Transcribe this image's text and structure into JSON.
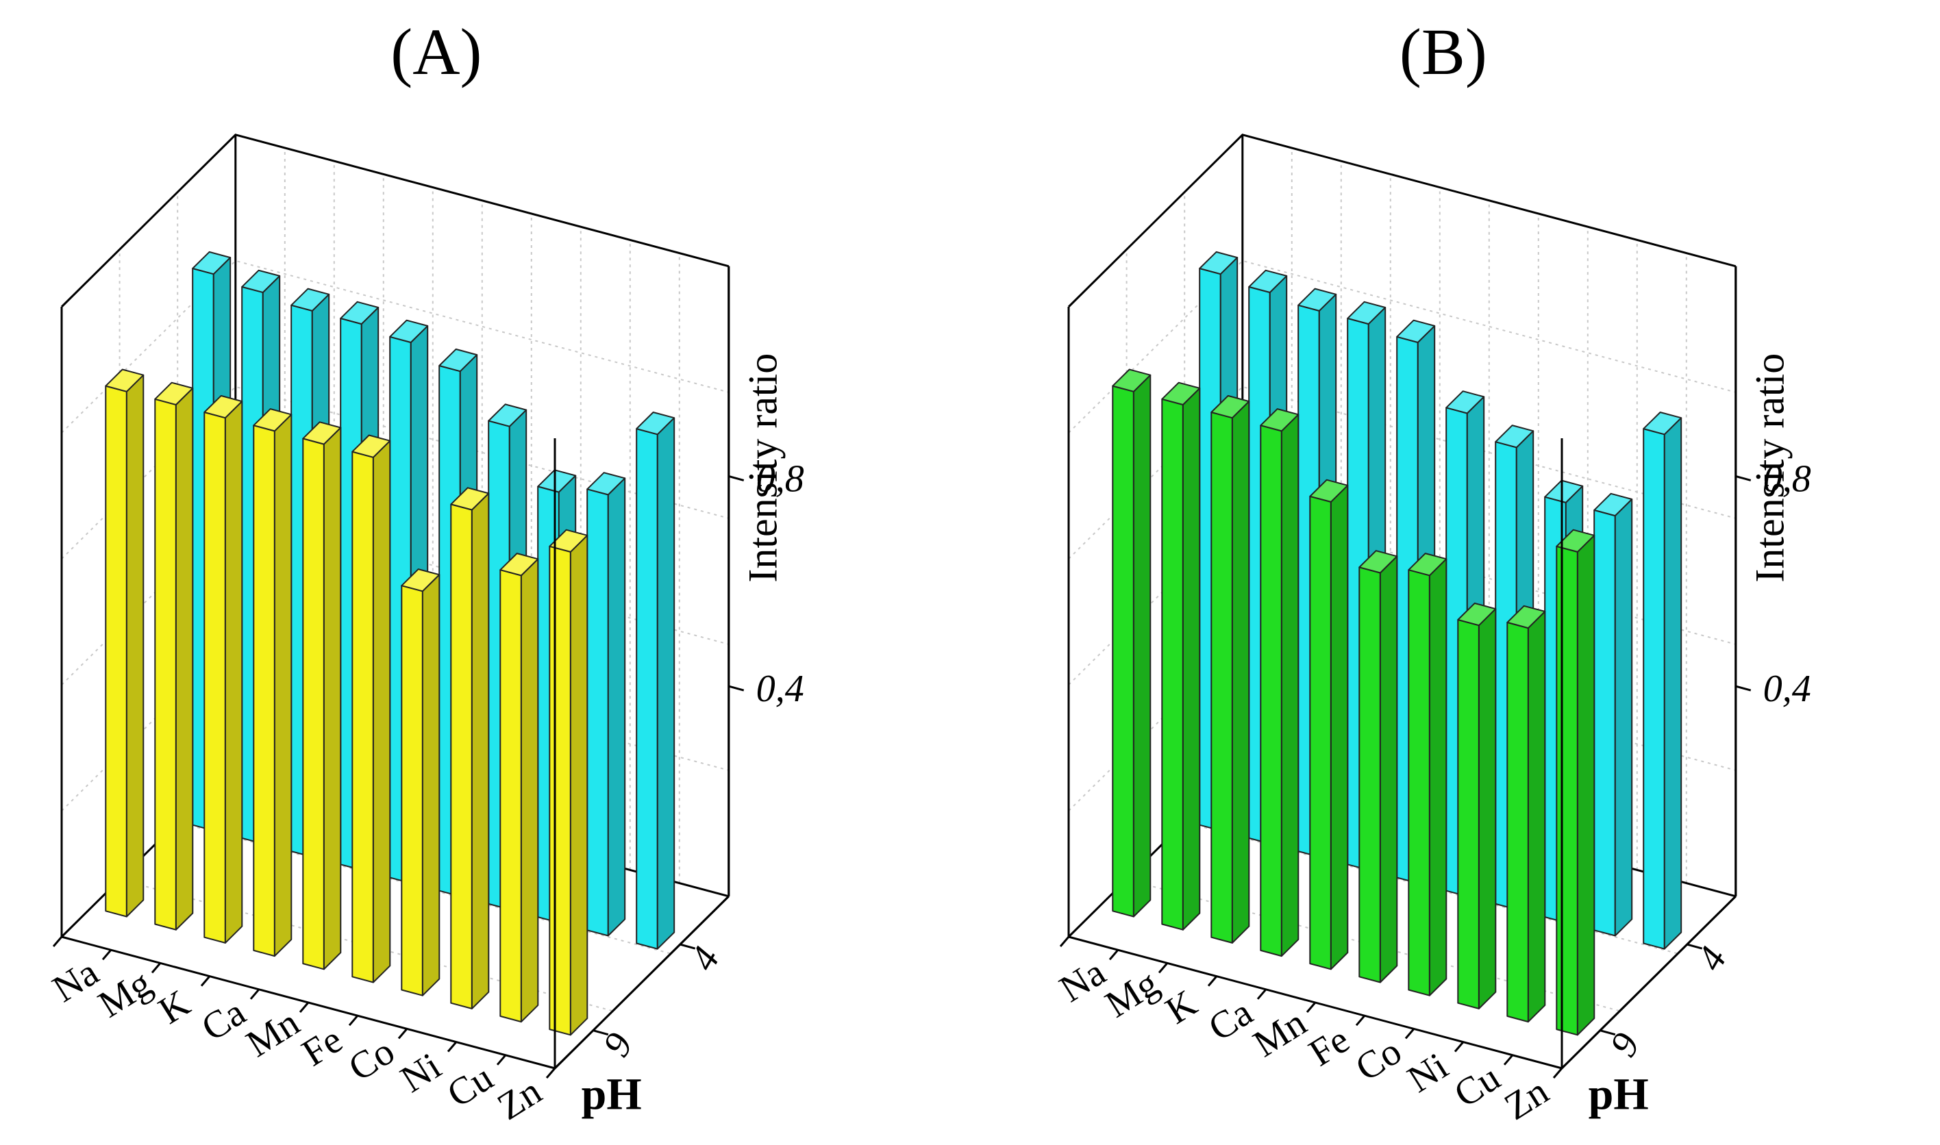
{
  "chart_data": [
    {
      "type": "bar3d",
      "title": "(A)",
      "categories": [
        "Na",
        "Mg",
        "K",
        "Ca",
        "Mn",
        "Fe",
        "Co",
        "Ni",
        "Cu",
        "Zn"
      ],
      "depth_categories": [
        "4",
        "9"
      ],
      "depth_label": "pH",
      "zlabel": "Intensity ratio",
      "z_ticks": [
        "0,4",
        "0,8"
      ],
      "zlim": [
        0,
        1.2
      ],
      "grid": true,
      "series": [
        {
          "name": "4",
          "color": "#22e6ee",
          "values": [
            1.06,
            1.05,
            1.04,
            1.04,
            1.03,
            1.0,
            0.92,
            0.82,
            0.84,
            0.98
          ]
        },
        {
          "name": "9",
          "color": "#f5f21a",
          "values": [
            1.0,
            1.0,
            1.0,
            1.0,
            1.0,
            1.0,
            0.77,
            0.95,
            0.85,
            0.92
          ]
        }
      ]
    },
    {
      "type": "bar3d",
      "title": "(B)",
      "categories": [
        "Na",
        "Mg",
        "K",
        "Ca",
        "Mn",
        "Fe",
        "Co",
        "Ni",
        "Cu",
        "Zn"
      ],
      "depth_categories": [
        "4",
        "9"
      ],
      "depth_label": "pH",
      "zlabel": "Intensity ratio",
      "z_ticks": [
        "0,4",
        "0,8"
      ],
      "zlim": [
        0,
        1.2
      ],
      "grid": true,
      "series": [
        {
          "name": "4",
          "color": "#22e6ee",
          "values": [
            1.06,
            1.05,
            1.04,
            1.04,
            1.03,
            0.92,
            0.88,
            0.8,
            0.8,
            0.98
          ]
        },
        {
          "name": "9",
          "color": "#22dd22",
          "values": [
            1.0,
            1.0,
            1.0,
            1.0,
            0.89,
            0.78,
            0.8,
            0.73,
            0.75,
            0.92
          ]
        }
      ]
    }
  ]
}
